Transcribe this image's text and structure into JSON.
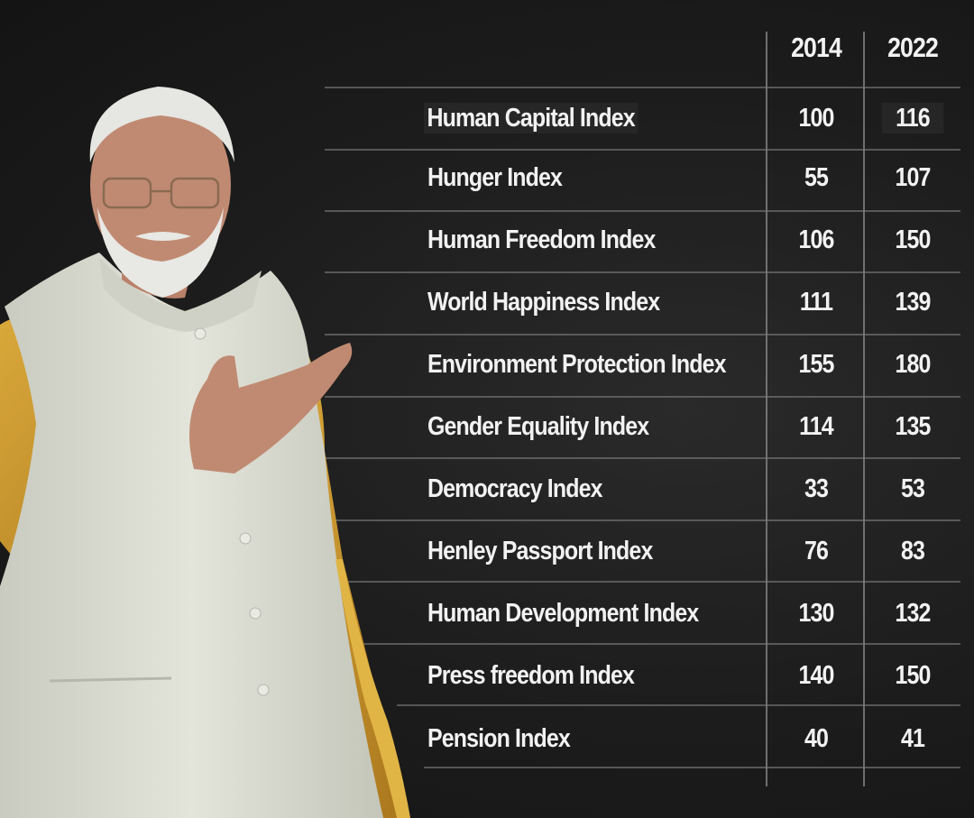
{
  "table": {
    "columns": [
      "2014",
      "2022"
    ],
    "rows": [
      {
        "label": "Human Capital Index",
        "v2014": "100",
        "v2022": "116"
      },
      {
        "label": "Hunger Index",
        "v2014": "55",
        "v2022": "107"
      },
      {
        "label": "Human Freedom Index",
        "v2014": "106",
        "v2022": "150"
      },
      {
        "label": "World Happiness Index",
        "v2014": "111",
        "v2022": "139"
      },
      {
        "label": "Environment Protection Index",
        "v2014": "155",
        "v2022": "180"
      },
      {
        "label": "Gender Equality Index",
        "v2014": "114",
        "v2022": "135"
      },
      {
        "label": "Democracy Index",
        "v2014": "33",
        "v2022": "53"
      },
      {
        "label": "Henley Passport Index",
        "v2014": "76",
        "v2022": "83"
      },
      {
        "label": "Human Development Index",
        "v2014": "130",
        "v2022": "132"
      },
      {
        "label": "Press freedom Index",
        "v2014": "140",
        "v2022": "150"
      },
      {
        "label": "Pension Index",
        "v2014": "40",
        "v2022": "41"
      }
    ]
  },
  "colors": {
    "background": "#1c1c1c",
    "text": "#f2f2f2",
    "gridline": "#8a8a8a",
    "vest": "#dcddd2",
    "sleeve": "#c8962c"
  }
}
